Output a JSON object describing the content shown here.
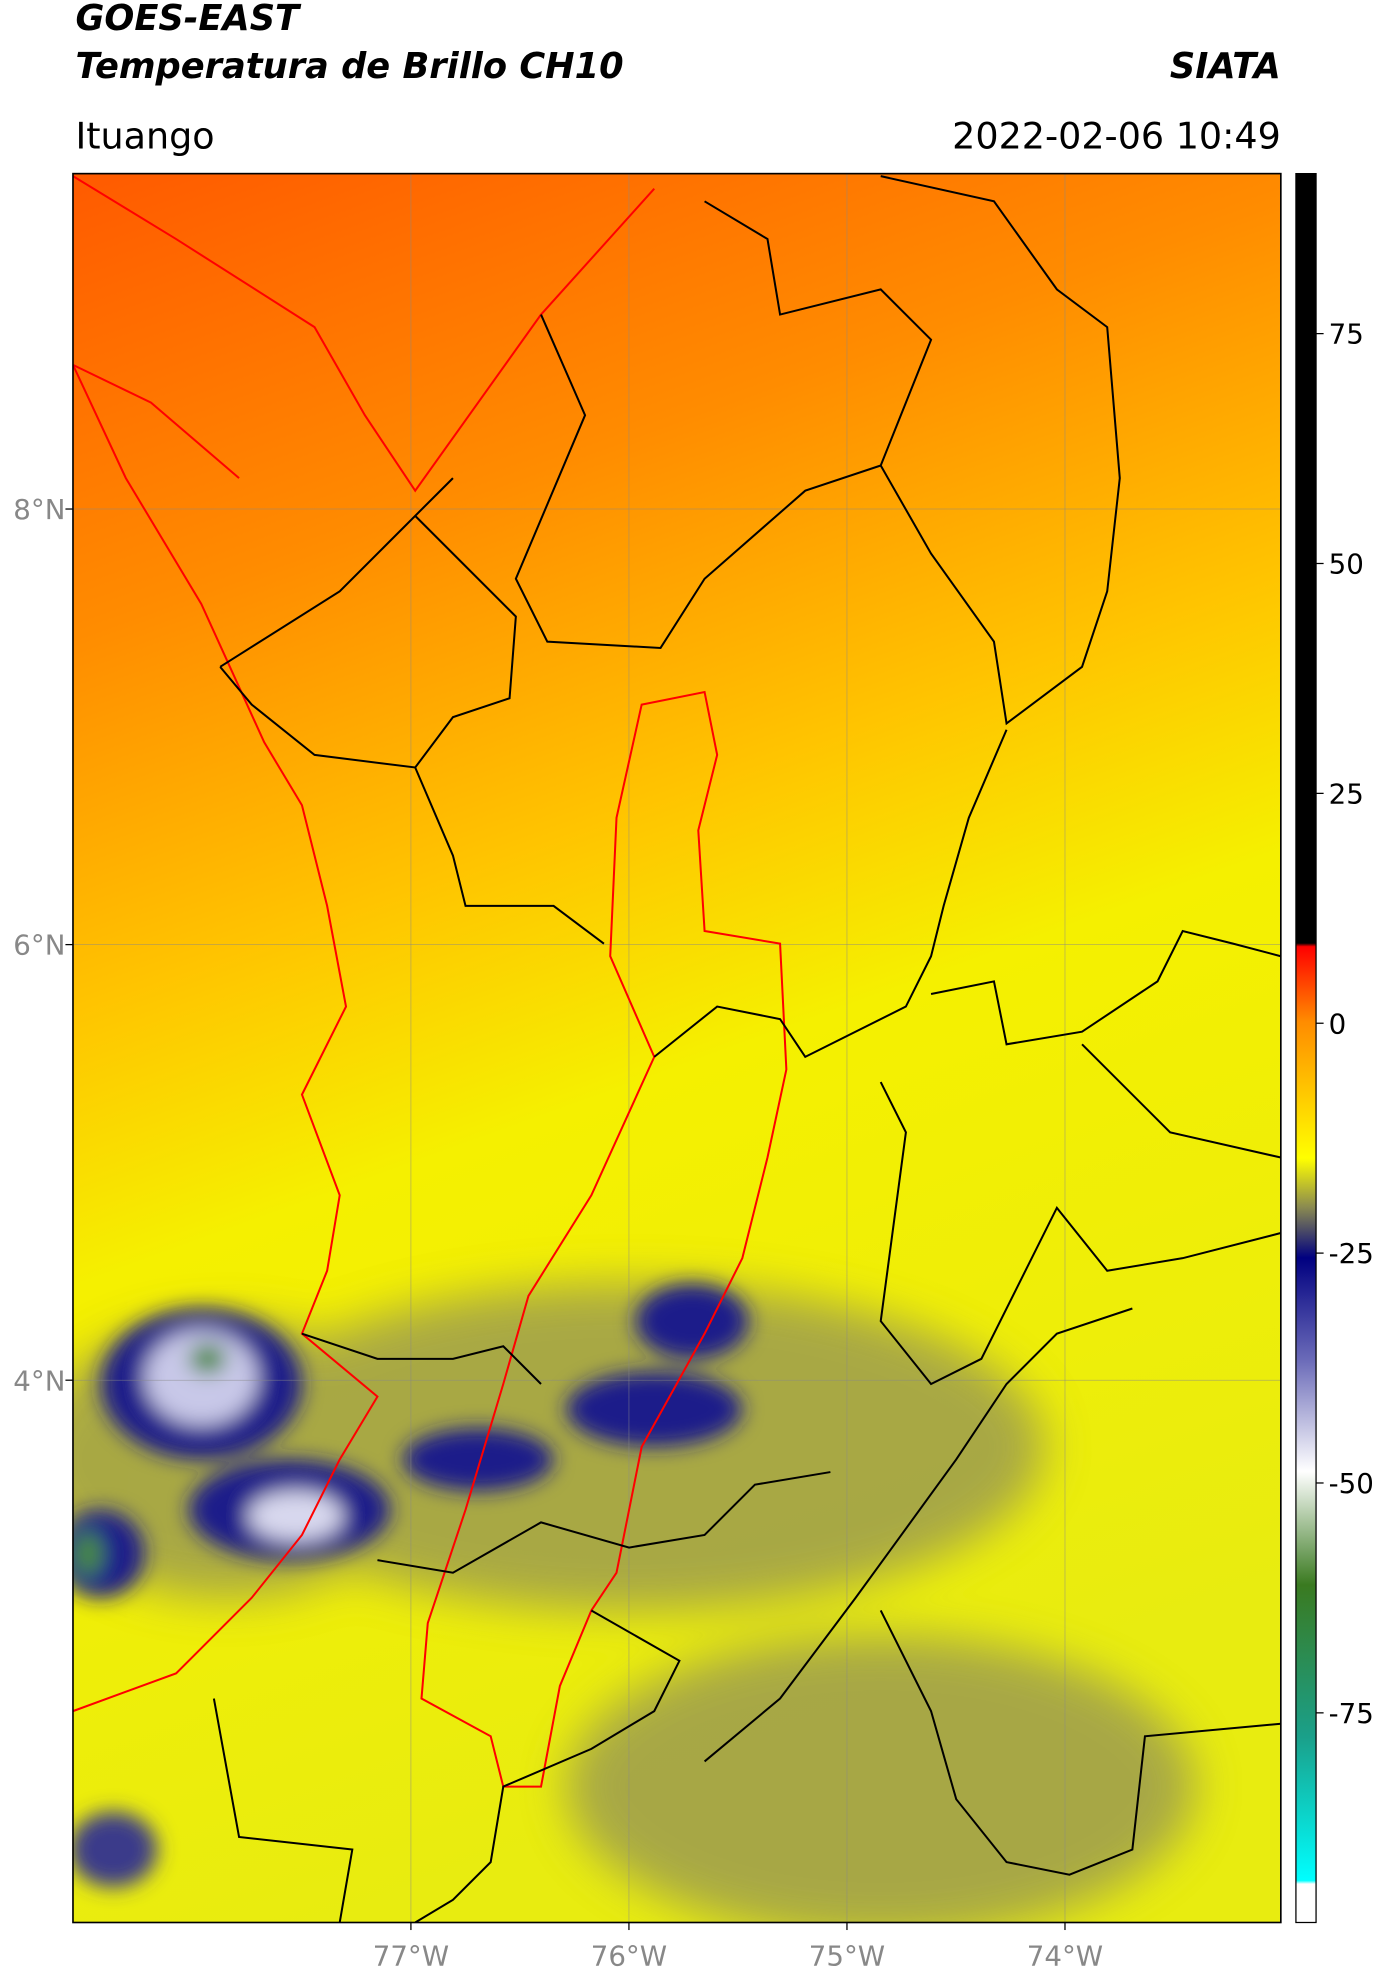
{
  "header": {
    "title": "GOES-EAST",
    "subtitle": "Temperatura de Brillo CH10",
    "source": "SIATA",
    "location": "Ituango",
    "timestamp": "2022-02-06 10:49"
  },
  "map": {
    "xlim": [
      -78.55,
      -73.01
    ],
    "ylim": [
      1.51,
      9.54
    ],
    "xticks": [
      {
        "value": -77,
        "label": "77°W"
      },
      {
        "value": -76,
        "label": "76°W"
      },
      {
        "value": -75,
        "label": "75°W"
      },
      {
        "value": -74,
        "label": "74°W"
      }
    ],
    "yticks": [
      {
        "value": 8,
        "label": "8°N"
      },
      {
        "value": 6,
        "label": "6°N"
      },
      {
        "value": 4,
        "label": "4°N"
      }
    ],
    "grid": true
  },
  "colorbar": {
    "lim": [
      -97.8,
      92.4
    ],
    "ticks": [
      -75,
      -50,
      -25,
      0,
      25,
      50,
      75
    ]
  }
}
